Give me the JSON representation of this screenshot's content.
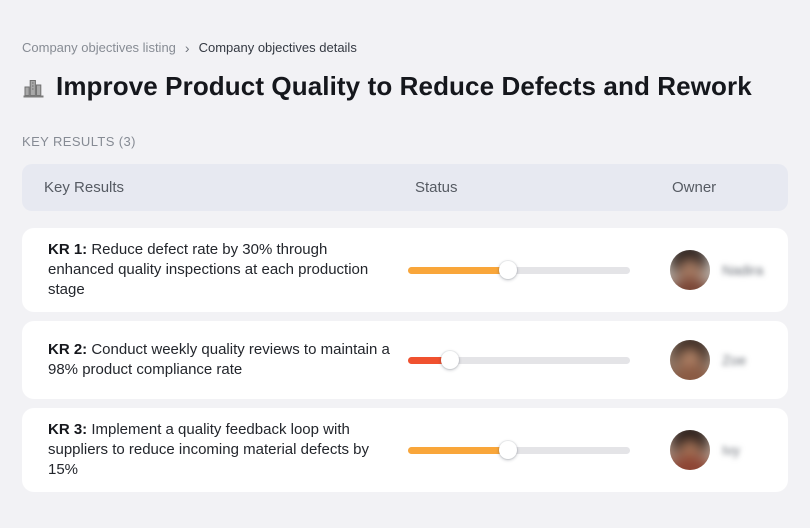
{
  "breadcrumb": {
    "separator": "›",
    "items": [
      {
        "label": "Company objectives listing"
      },
      {
        "label": "Company objectives details"
      }
    ]
  },
  "header": {
    "icon": "buildings-icon",
    "title": "Improve Product Quality to Reduce Defects and Rework"
  },
  "section_label": "KEY RESULTS (3)",
  "table": {
    "columns": {
      "kr": "Key Results",
      "status": "Status",
      "owner": "Owner"
    },
    "rows": [
      {
        "kr_label": "KR 1:",
        "description": "Reduce defect rate by 30% through enhanced quality inspections at each production stage",
        "progress_percent": 45,
        "progress_color": "#f9a63a",
        "owner_name": "Nadira",
        "owner_name_blurred": true
      },
      {
        "kr_label": "KR 2:",
        "description": "Conduct weekly quality reviews to maintain a 98% product compliance rate",
        "progress_percent": 19,
        "progress_color": "#f0512f",
        "owner_name": "Zoe",
        "owner_name_blurred": true
      },
      {
        "kr_label": "KR 3:",
        "description": "Implement a quality feedback loop with suppliers to reduce incoming material defects by 15%",
        "progress_percent": 45,
        "progress_color": "#f9a63a",
        "owner_name": "Ivy",
        "owner_name_blurred": true
      }
    ]
  },
  "colors": {
    "page_background": "#f2f2f5",
    "card_background": "#ffffff",
    "table_header_background": "#e7e9f1",
    "progress_track": "#e4e4e7",
    "progress_orange": "#f9a63a",
    "progress_red": "#f0512f",
    "title_text": "#15171c",
    "muted_text": "#868b94"
  }
}
